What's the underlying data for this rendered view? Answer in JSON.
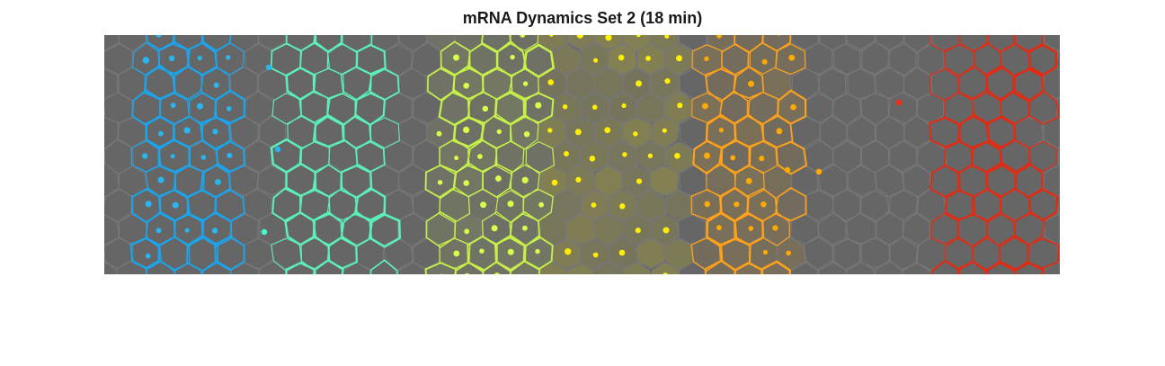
{
  "figure": {
    "title": "mRNA Dynamics Set 2 (18 min)"
  },
  "image": {
    "description_type": "microscopy-visualization",
    "background_color": "#666666",
    "cell_edge_color": "#777777",
    "stripes": [
      {
        "name": "cyan-blue-stripe",
        "outline_color": "#1aa6ee",
        "dot_color": "#29b6f0"
      },
      {
        "name": "aquamarine-stripe",
        "outline_color": "#5cf0b8",
        "dot_color": "#3fffcf"
      },
      {
        "name": "yellow-green-stripe",
        "outline_color": "#c7f04a",
        "dot_color": "#d8ff4a"
      },
      {
        "name": "yellow-stripe",
        "outline_color": "#d6dc50",
        "dot_color": "#ffee00"
      },
      {
        "name": "orange-stripe",
        "outline_color": "#ffa21a",
        "dot_color": "#ffaa00"
      },
      {
        "name": "red-stripe",
        "outline_color": "#e22b12",
        "dot_color": "#ff2a10"
      }
    ]
  }
}
